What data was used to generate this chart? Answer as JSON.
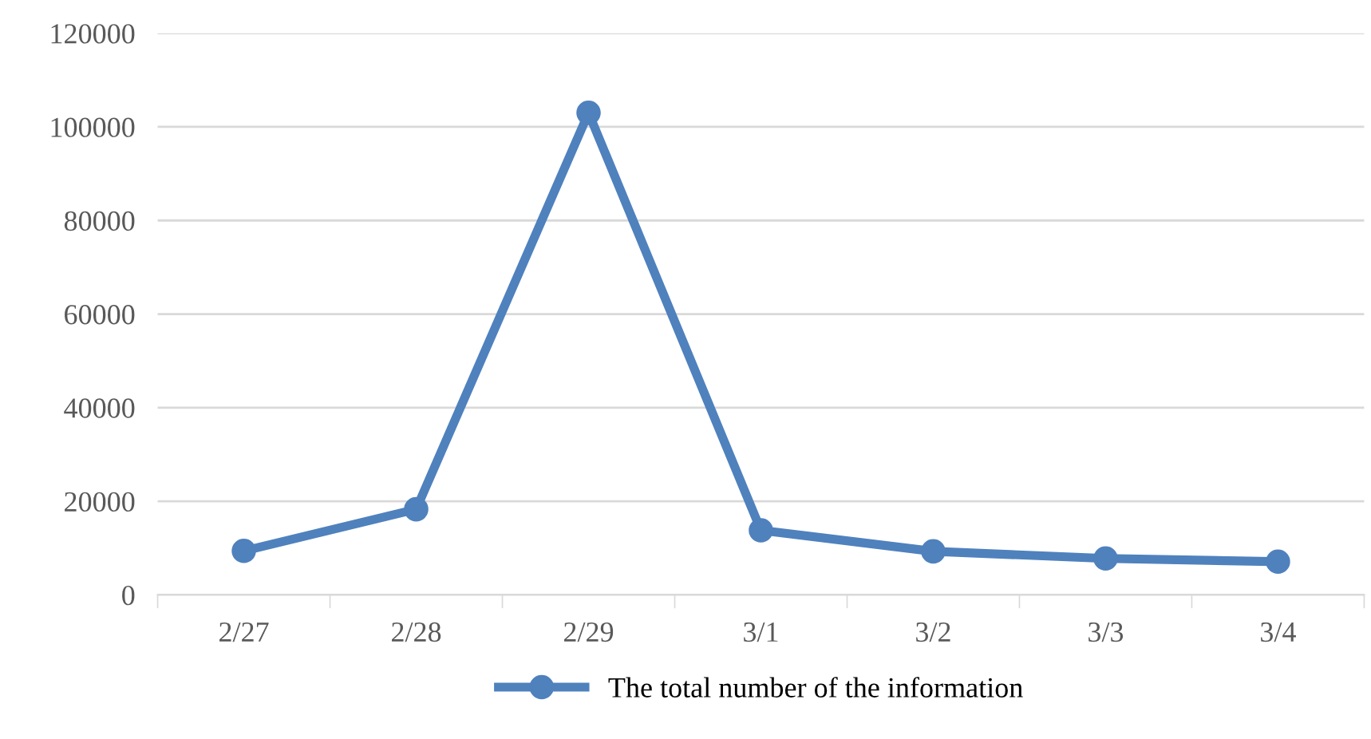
{
  "chart_data": {
    "type": "line",
    "categories": [
      "2/27",
      "2/28",
      "2/29",
      "3/1",
      "3/2",
      "3/3",
      "3/4"
    ],
    "series": [
      {
        "name": "The total number of the information",
        "color": "#4f81bd",
        "values": [
          9400,
          18300,
          103000,
          13800,
          9300,
          7800,
          7100
        ]
      }
    ],
    "ylim": [
      0,
      120000
    ],
    "yticks": [
      0,
      20000,
      40000,
      60000,
      80000,
      100000,
      120000
    ],
    "grid": "y",
    "legend": "bottom",
    "marker": "circle",
    "line_style": "solid"
  }
}
